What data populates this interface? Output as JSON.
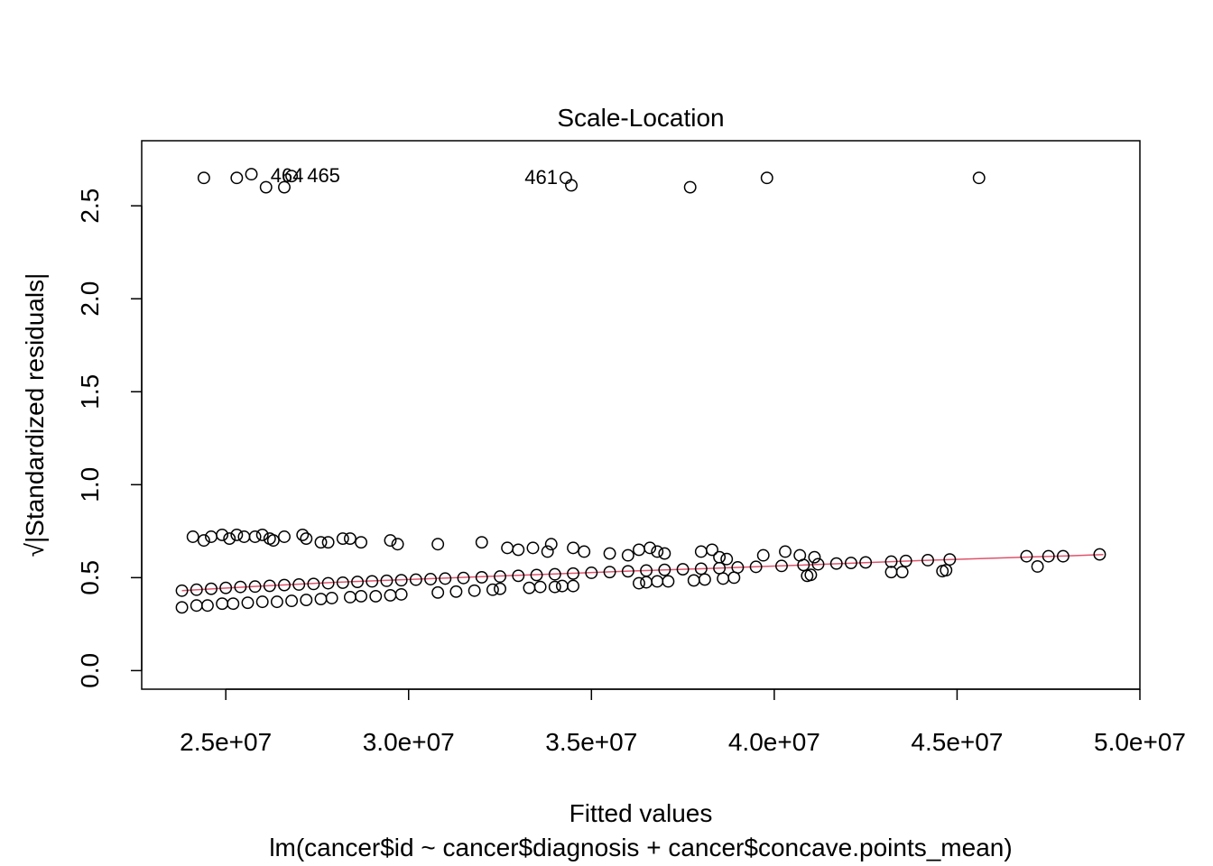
{
  "chart_data": {
    "type": "scatter",
    "title": "Scale-Location",
    "xlabel": "Fitted values",
    "ylabel": "√|Standardized residuals|",
    "subtitle": "lm(cancer$id ~ cancer$diagnosis + cancer$concave.points_mean)",
    "xlim": [
      22700000,
      50000000
    ],
    "ylim": [
      -0.1,
      2.85
    ],
    "x_ticks": [
      {
        "value": 25000000,
        "label": "2.5e+07"
      },
      {
        "value": 30000000,
        "label": "3.0e+07"
      },
      {
        "value": 35000000,
        "label": "3.5e+07"
      },
      {
        "value": 40000000,
        "label": "4.0e+07"
      },
      {
        "value": 45000000,
        "label": "4.5e+07"
      },
      {
        "value": 50000000,
        "label": "5.0e+07"
      }
    ],
    "y_ticks": [
      {
        "value": 0.0,
        "label": "0.0"
      },
      {
        "value": 0.5,
        "label": "0.5"
      },
      {
        "value": 1.0,
        "label": "1.0"
      },
      {
        "value": 1.5,
        "label": "1.5"
      },
      {
        "value": 2.0,
        "label": "2.0"
      },
      {
        "value": 2.5,
        "label": "2.5"
      }
    ],
    "grid": false,
    "smoother_color": "#df536b",
    "point_color": "#000000",
    "smoother": [
      {
        "x": 23800000,
        "y": 0.43
      },
      {
        "x": 26000000,
        "y": 0.455
      },
      {
        "x": 28000000,
        "y": 0.475
      },
      {
        "x": 30000000,
        "y": 0.49
      },
      {
        "x": 32000000,
        "y": 0.505
      },
      {
        "x": 34000000,
        "y": 0.52
      },
      {
        "x": 36000000,
        "y": 0.535
      },
      {
        "x": 38000000,
        "y": 0.548
      },
      {
        "x": 40000000,
        "y": 0.562
      },
      {
        "x": 42000000,
        "y": 0.577
      },
      {
        "x": 44000000,
        "y": 0.592
      },
      {
        "x": 46000000,
        "y": 0.605
      },
      {
        "x": 48000000,
        "y": 0.617
      },
      {
        "x": 49000000,
        "y": 0.624
      }
    ],
    "point_labels": [
      {
        "label": "464",
        "x": 26000000,
        "y": 2.66
      },
      {
        "label": "465",
        "x": 27000000,
        "y": 2.66
      },
      {
        "label": "461",
        "x": 34300000,
        "y": 2.65
      }
    ],
    "outliers": [
      {
        "x": 24400000,
        "y": 2.65
      },
      {
        "x": 25300000,
        "y": 2.65
      },
      {
        "x": 25700000,
        "y": 2.67
      },
      {
        "x": 26100000,
        "y": 2.6
      },
      {
        "x": 26600000,
        "y": 2.6
      },
      {
        "x": 26800000,
        "y": 2.66
      },
      {
        "x": 34300000,
        "y": 2.65
      },
      {
        "x": 34450000,
        "y": 2.61
      },
      {
        "x": 37700000,
        "y": 2.6
      },
      {
        "x": 39800000,
        "y": 2.65
      },
      {
        "x": 45600000,
        "y": 2.65
      }
    ],
    "clusters": {
      "upper": [
        {
          "x": 24100000,
          "y": 0.72
        },
        {
          "x": 24400000,
          "y": 0.7
        },
        {
          "x": 24600000,
          "y": 0.72
        },
        {
          "x": 24900000,
          "y": 0.73
        },
        {
          "x": 25100000,
          "y": 0.71
        },
        {
          "x": 25300000,
          "y": 0.73
        },
        {
          "x": 25500000,
          "y": 0.72
        },
        {
          "x": 25800000,
          "y": 0.72
        },
        {
          "x": 26000000,
          "y": 0.73
        },
        {
          "x": 26200000,
          "y": 0.71
        },
        {
          "x": 26300000,
          "y": 0.7
        },
        {
          "x": 26600000,
          "y": 0.72
        },
        {
          "x": 27100000,
          "y": 0.73
        },
        {
          "x": 27200000,
          "y": 0.71
        },
        {
          "x": 27600000,
          "y": 0.69
        },
        {
          "x": 27800000,
          "y": 0.69
        },
        {
          "x": 28200000,
          "y": 0.71
        },
        {
          "x": 28400000,
          "y": 0.71
        },
        {
          "x": 28700000,
          "y": 0.69
        },
        {
          "x": 29500000,
          "y": 0.7
        },
        {
          "x": 29700000,
          "y": 0.68
        },
        {
          "x": 30800000,
          "y": 0.68
        },
        {
          "x": 32000000,
          "y": 0.69
        },
        {
          "x": 32700000,
          "y": 0.66
        },
        {
          "x": 33000000,
          "y": 0.65
        },
        {
          "x": 33400000,
          "y": 0.66
        },
        {
          "x": 33800000,
          "y": 0.64
        },
        {
          "x": 33900000,
          "y": 0.68
        },
        {
          "x": 34500000,
          "y": 0.66
        },
        {
          "x": 34800000,
          "y": 0.64
        },
        {
          "x": 35500000,
          "y": 0.63
        },
        {
          "x": 36000000,
          "y": 0.62
        },
        {
          "x": 36300000,
          "y": 0.65
        },
        {
          "x": 36600000,
          "y": 0.66
        },
        {
          "x": 36800000,
          "y": 0.64
        },
        {
          "x": 37000000,
          "y": 0.63
        },
        {
          "x": 38000000,
          "y": 0.64
        },
        {
          "x": 38300000,
          "y": 0.65
        },
        {
          "x": 38500000,
          "y": 0.61
        },
        {
          "x": 38700000,
          "y": 0.6
        },
        {
          "x": 39700000,
          "y": 0.62
        },
        {
          "x": 40300000,
          "y": 0.64
        },
        {
          "x": 40700000,
          "y": 0.62
        },
        {
          "x": 41100000,
          "y": 0.61
        }
      ],
      "middle": [
        {
          "x": 23800000,
          "y": 0.43
        },
        {
          "x": 24200000,
          "y": 0.435
        },
        {
          "x": 24600000,
          "y": 0.44
        },
        {
          "x": 25000000,
          "y": 0.445
        },
        {
          "x": 25400000,
          "y": 0.45
        },
        {
          "x": 25800000,
          "y": 0.452
        },
        {
          "x": 26200000,
          "y": 0.456
        },
        {
          "x": 26600000,
          "y": 0.46
        },
        {
          "x": 27000000,
          "y": 0.463
        },
        {
          "x": 27400000,
          "y": 0.466
        },
        {
          "x": 27800000,
          "y": 0.47
        },
        {
          "x": 28200000,
          "y": 0.473
        },
        {
          "x": 28600000,
          "y": 0.477
        },
        {
          "x": 29000000,
          "y": 0.48
        },
        {
          "x": 29400000,
          "y": 0.483
        },
        {
          "x": 29800000,
          "y": 0.486
        },
        {
          "x": 30200000,
          "y": 0.489
        },
        {
          "x": 30600000,
          "y": 0.492
        },
        {
          "x": 31000000,
          "y": 0.495
        },
        {
          "x": 31500000,
          "y": 0.498
        },
        {
          "x": 32000000,
          "y": 0.502
        },
        {
          "x": 32500000,
          "y": 0.506
        },
        {
          "x": 33000000,
          "y": 0.51
        },
        {
          "x": 33500000,
          "y": 0.514
        },
        {
          "x": 34000000,
          "y": 0.518
        },
        {
          "x": 34500000,
          "y": 0.522
        },
        {
          "x": 35000000,
          "y": 0.526
        },
        {
          "x": 35500000,
          "y": 0.53
        },
        {
          "x": 36000000,
          "y": 0.534
        },
        {
          "x": 36500000,
          "y": 0.538
        },
        {
          "x": 37000000,
          "y": 0.542
        },
        {
          "x": 37500000,
          "y": 0.545
        },
        {
          "x": 38000000,
          "y": 0.548
        },
        {
          "x": 38500000,
          "y": 0.551
        },
        {
          "x": 39000000,
          "y": 0.555
        },
        {
          "x": 39500000,
          "y": 0.558
        },
        {
          "x": 40200000,
          "y": 0.563
        },
        {
          "x": 40800000,
          "y": 0.568
        },
        {
          "x": 41200000,
          "y": 0.572
        },
        {
          "x": 41700000,
          "y": 0.576
        },
        {
          "x": 42100000,
          "y": 0.579
        },
        {
          "x": 42500000,
          "y": 0.582
        },
        {
          "x": 43200000,
          "y": 0.586
        },
        {
          "x": 43600000,
          "y": 0.59
        },
        {
          "x": 44200000,
          "y": 0.594
        },
        {
          "x": 44800000,
          "y": 0.598
        }
      ],
      "lower": [
        {
          "x": 23800000,
          "y": 0.34
        },
        {
          "x": 24200000,
          "y": 0.35
        },
        {
          "x": 24500000,
          "y": 0.35
        },
        {
          "x": 24900000,
          "y": 0.36
        },
        {
          "x": 25200000,
          "y": 0.36
        },
        {
          "x": 25600000,
          "y": 0.365
        },
        {
          "x": 26000000,
          "y": 0.37
        },
        {
          "x": 26400000,
          "y": 0.37
        },
        {
          "x": 26800000,
          "y": 0.375
        },
        {
          "x": 27200000,
          "y": 0.38
        },
        {
          "x": 27600000,
          "y": 0.385
        },
        {
          "x": 27900000,
          "y": 0.39
        },
        {
          "x": 28400000,
          "y": 0.395
        },
        {
          "x": 28700000,
          "y": 0.4
        },
        {
          "x": 29100000,
          "y": 0.4
        },
        {
          "x": 29500000,
          "y": 0.405
        },
        {
          "x": 29800000,
          "y": 0.41
        },
        {
          "x": 30800000,
          "y": 0.42
        },
        {
          "x": 31300000,
          "y": 0.425
        },
        {
          "x": 31800000,
          "y": 0.43
        },
        {
          "x": 32300000,
          "y": 0.435
        },
        {
          "x": 32500000,
          "y": 0.44
        },
        {
          "x": 33300000,
          "y": 0.445
        },
        {
          "x": 33600000,
          "y": 0.45
        },
        {
          "x": 34000000,
          "y": 0.45
        },
        {
          "x": 34200000,
          "y": 0.455
        },
        {
          "x": 34500000,
          "y": 0.455
        },
        {
          "x": 36300000,
          "y": 0.47
        },
        {
          "x": 36500000,
          "y": 0.475
        },
        {
          "x": 36800000,
          "y": 0.48
        },
        {
          "x": 37100000,
          "y": 0.48
        },
        {
          "x": 37800000,
          "y": 0.485
        },
        {
          "x": 38100000,
          "y": 0.49
        },
        {
          "x": 38600000,
          "y": 0.495
        },
        {
          "x": 38900000,
          "y": 0.5
        },
        {
          "x": 40900000,
          "y": 0.51
        },
        {
          "x": 41000000,
          "y": 0.515
        },
        {
          "x": 43200000,
          "y": 0.53
        },
        {
          "x": 43500000,
          "y": 0.53
        },
        {
          "x": 44600000,
          "y": 0.535
        },
        {
          "x": 44700000,
          "y": 0.54
        },
        {
          "x": 46900000,
          "y": 0.615
        },
        {
          "x": 47200000,
          "y": 0.56
        },
        {
          "x": 47500000,
          "y": 0.615
        },
        {
          "x": 47900000,
          "y": 0.615
        },
        {
          "x": 48900000,
          "y": 0.625
        }
      ]
    }
  }
}
